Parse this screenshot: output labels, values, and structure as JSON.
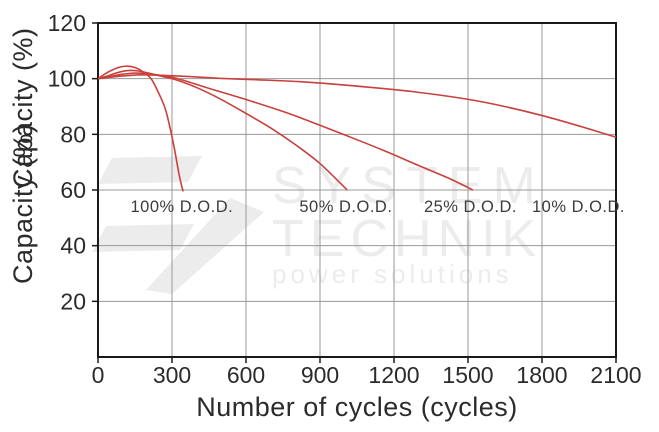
{
  "chart_data": {
    "type": "line",
    "title": "",
    "xlabel": "Number of cycles (cycles)",
    "ylabel": "Capacity (%)",
    "ylabel_duplicate": "Capacity (%)",
    "xlim": [
      0,
      2100
    ],
    "ylim": [
      0,
      120
    ],
    "x_ticks": [
      0,
      300,
      600,
      900,
      1200,
      1500,
      1800,
      2100
    ],
    "y_ticks": [
      20,
      40,
      60,
      80,
      100,
      120
    ],
    "grid": true,
    "legend_position": "none",
    "series": [
      {
        "name": "100% D.O.D.",
        "label": "100% D.O.D.",
        "label_at": [
          340,
          54.3
        ],
        "points": [
          [
            0,
            100
          ],
          [
            30,
            101.8
          ],
          [
            60,
            103.2
          ],
          [
            90,
            104.2
          ],
          [
            120,
            104.5
          ],
          [
            150,
            104
          ],
          [
            180,
            102.6
          ],
          [
            215,
            100
          ],
          [
            245,
            95
          ],
          [
            275,
            88.5
          ],
          [
            305,
            77
          ],
          [
            330,
            65
          ],
          [
            345,
            59.5
          ]
        ]
      },
      {
        "name": "50% D.O.D.",
        "label": "50% D.O.D.",
        "label_at": [
          1005,
          54.3
        ],
        "points": [
          [
            0,
            100
          ],
          [
            40,
            101
          ],
          [
            80,
            102.2
          ],
          [
            120,
            102.9
          ],
          [
            160,
            102.8
          ],
          [
            210,
            101.9
          ],
          [
            260,
            100.8
          ],
          [
            315,
            99.6
          ],
          [
            400,
            96.8
          ],
          [
            500,
            92.5
          ],
          [
            600,
            87.5
          ],
          [
            700,
            82.3
          ],
          [
            800,
            76.3
          ],
          [
            900,
            69.5
          ],
          [
            1010,
            60
          ]
        ]
      },
      {
        "name": "25% D.O.D.",
        "label": "25% D.O.D.",
        "label_at": [
          1510,
          54.3
        ],
        "points": [
          [
            0,
            100
          ],
          [
            50,
            100.8
          ],
          [
            100,
            101.6
          ],
          [
            160,
            102
          ],
          [
            220,
            101.6
          ],
          [
            315,
            100.2
          ],
          [
            450,
            96.5
          ],
          [
            600,
            92.5
          ],
          [
            740,
            88.5
          ],
          [
            840,
            85.3
          ],
          [
            1000,
            79.8
          ],
          [
            1150,
            74.5
          ],
          [
            1300,
            68.8
          ],
          [
            1420,
            64.3
          ],
          [
            1520,
            60
          ]
        ]
      },
      {
        "name": "10% D.O.D.",
        "label": "10% D.O.D.",
        "label_at": [
          1948,
          54.3
        ],
        "points": [
          [
            0,
            100
          ],
          [
            60,
            100.6
          ],
          [
            120,
            101.1
          ],
          [
            180,
            101.4
          ],
          [
            260,
            101.2
          ],
          [
            360,
            100.8
          ],
          [
            500,
            100.1
          ],
          [
            650,
            99.6
          ],
          [
            820,
            98.9
          ],
          [
            1000,
            97.7
          ],
          [
            1280,
            95.3
          ],
          [
            1550,
            91.8
          ],
          [
            1820,
            86.3
          ],
          [
            2100,
            79
          ]
        ]
      }
    ],
    "watermark": {
      "line1": "SYSTEM",
      "line2": "TECHNIK",
      "line3": "power solutions"
    }
  },
  "colors": {
    "curve": "#c9403c",
    "grid": "#989898",
    "axis": "#1a1a1a",
    "text": "#2b2b2b",
    "dod_label": "#3c3c3c",
    "watermark": "#ececec"
  }
}
